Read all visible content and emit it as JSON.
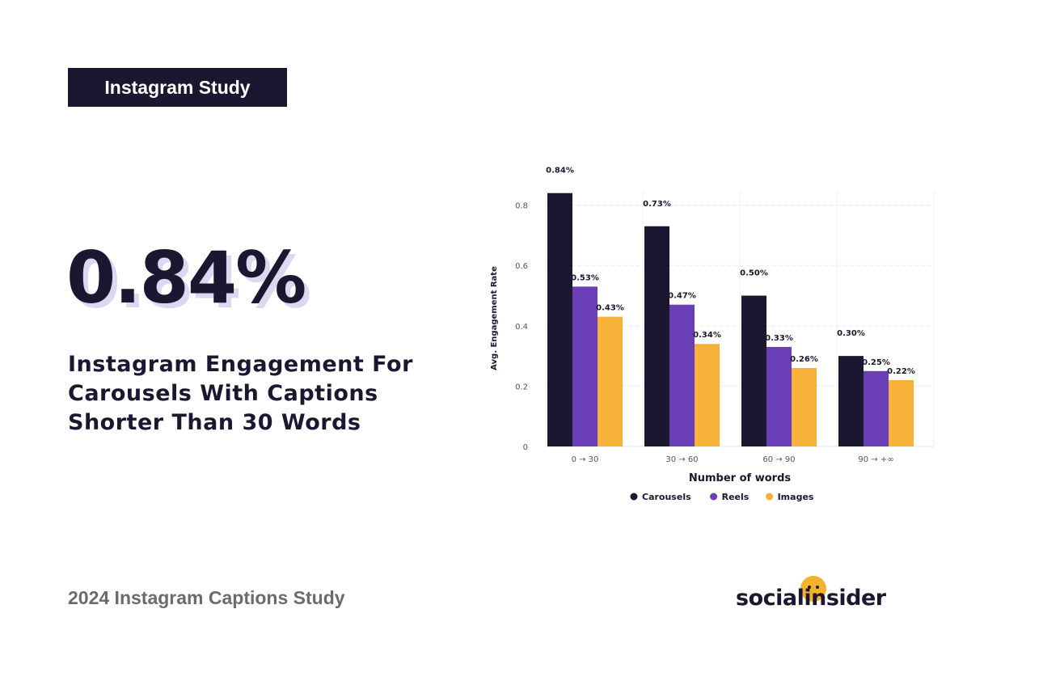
{
  "badge": {
    "label": "Instagram Study"
  },
  "highlight": {
    "stat": "0.84%",
    "headline": "Instagram Engagement For Carousels With Captions Shorter Than 30 Words"
  },
  "footer": {
    "study_label": "2024 Instagram Captions Study",
    "logo_text": "socialinsider"
  },
  "colors": {
    "dark": "#1c1730",
    "carousels": "#1c1730",
    "reels": "#6a3fb5",
    "images": "#f6b13b"
  },
  "chart_data": {
    "type": "bar",
    "title": "",
    "xlabel": "Number of words",
    "ylabel": "Avg. Engagement Rate",
    "categories": [
      "0 → 30",
      "30 → 60",
      "60 → 90",
      "90 → +∞"
    ],
    "ylim": [
      0,
      0.85
    ],
    "yticks": [
      0,
      0.2,
      0.4,
      0.6,
      0.8
    ],
    "ytick_labels": [
      "0",
      "0.2",
      "0.4",
      "0.6",
      "0.8"
    ],
    "legend_position": "bottom",
    "grid": true,
    "series": [
      {
        "name": "Carousels",
        "color": "#1c1730",
        "values": [
          0.84,
          0.73,
          0.5,
          0.3
        ],
        "labels": [
          "0.84%",
          "0.73%",
          "0.50%",
          "0.30%"
        ]
      },
      {
        "name": "Reels",
        "color": "#6a3fb5",
        "values": [
          0.53,
          0.47,
          0.33,
          0.25
        ],
        "labels": [
          "0.53%",
          "0.47%",
          "0.33%",
          "0.25%"
        ]
      },
      {
        "name": "Images",
        "color": "#f6b13b",
        "values": [
          0.43,
          0.34,
          0.26,
          0.22
        ],
        "labels": [
          "0.43%",
          "0.34%",
          "0.26%",
          "0.22%"
        ]
      }
    ]
  }
}
